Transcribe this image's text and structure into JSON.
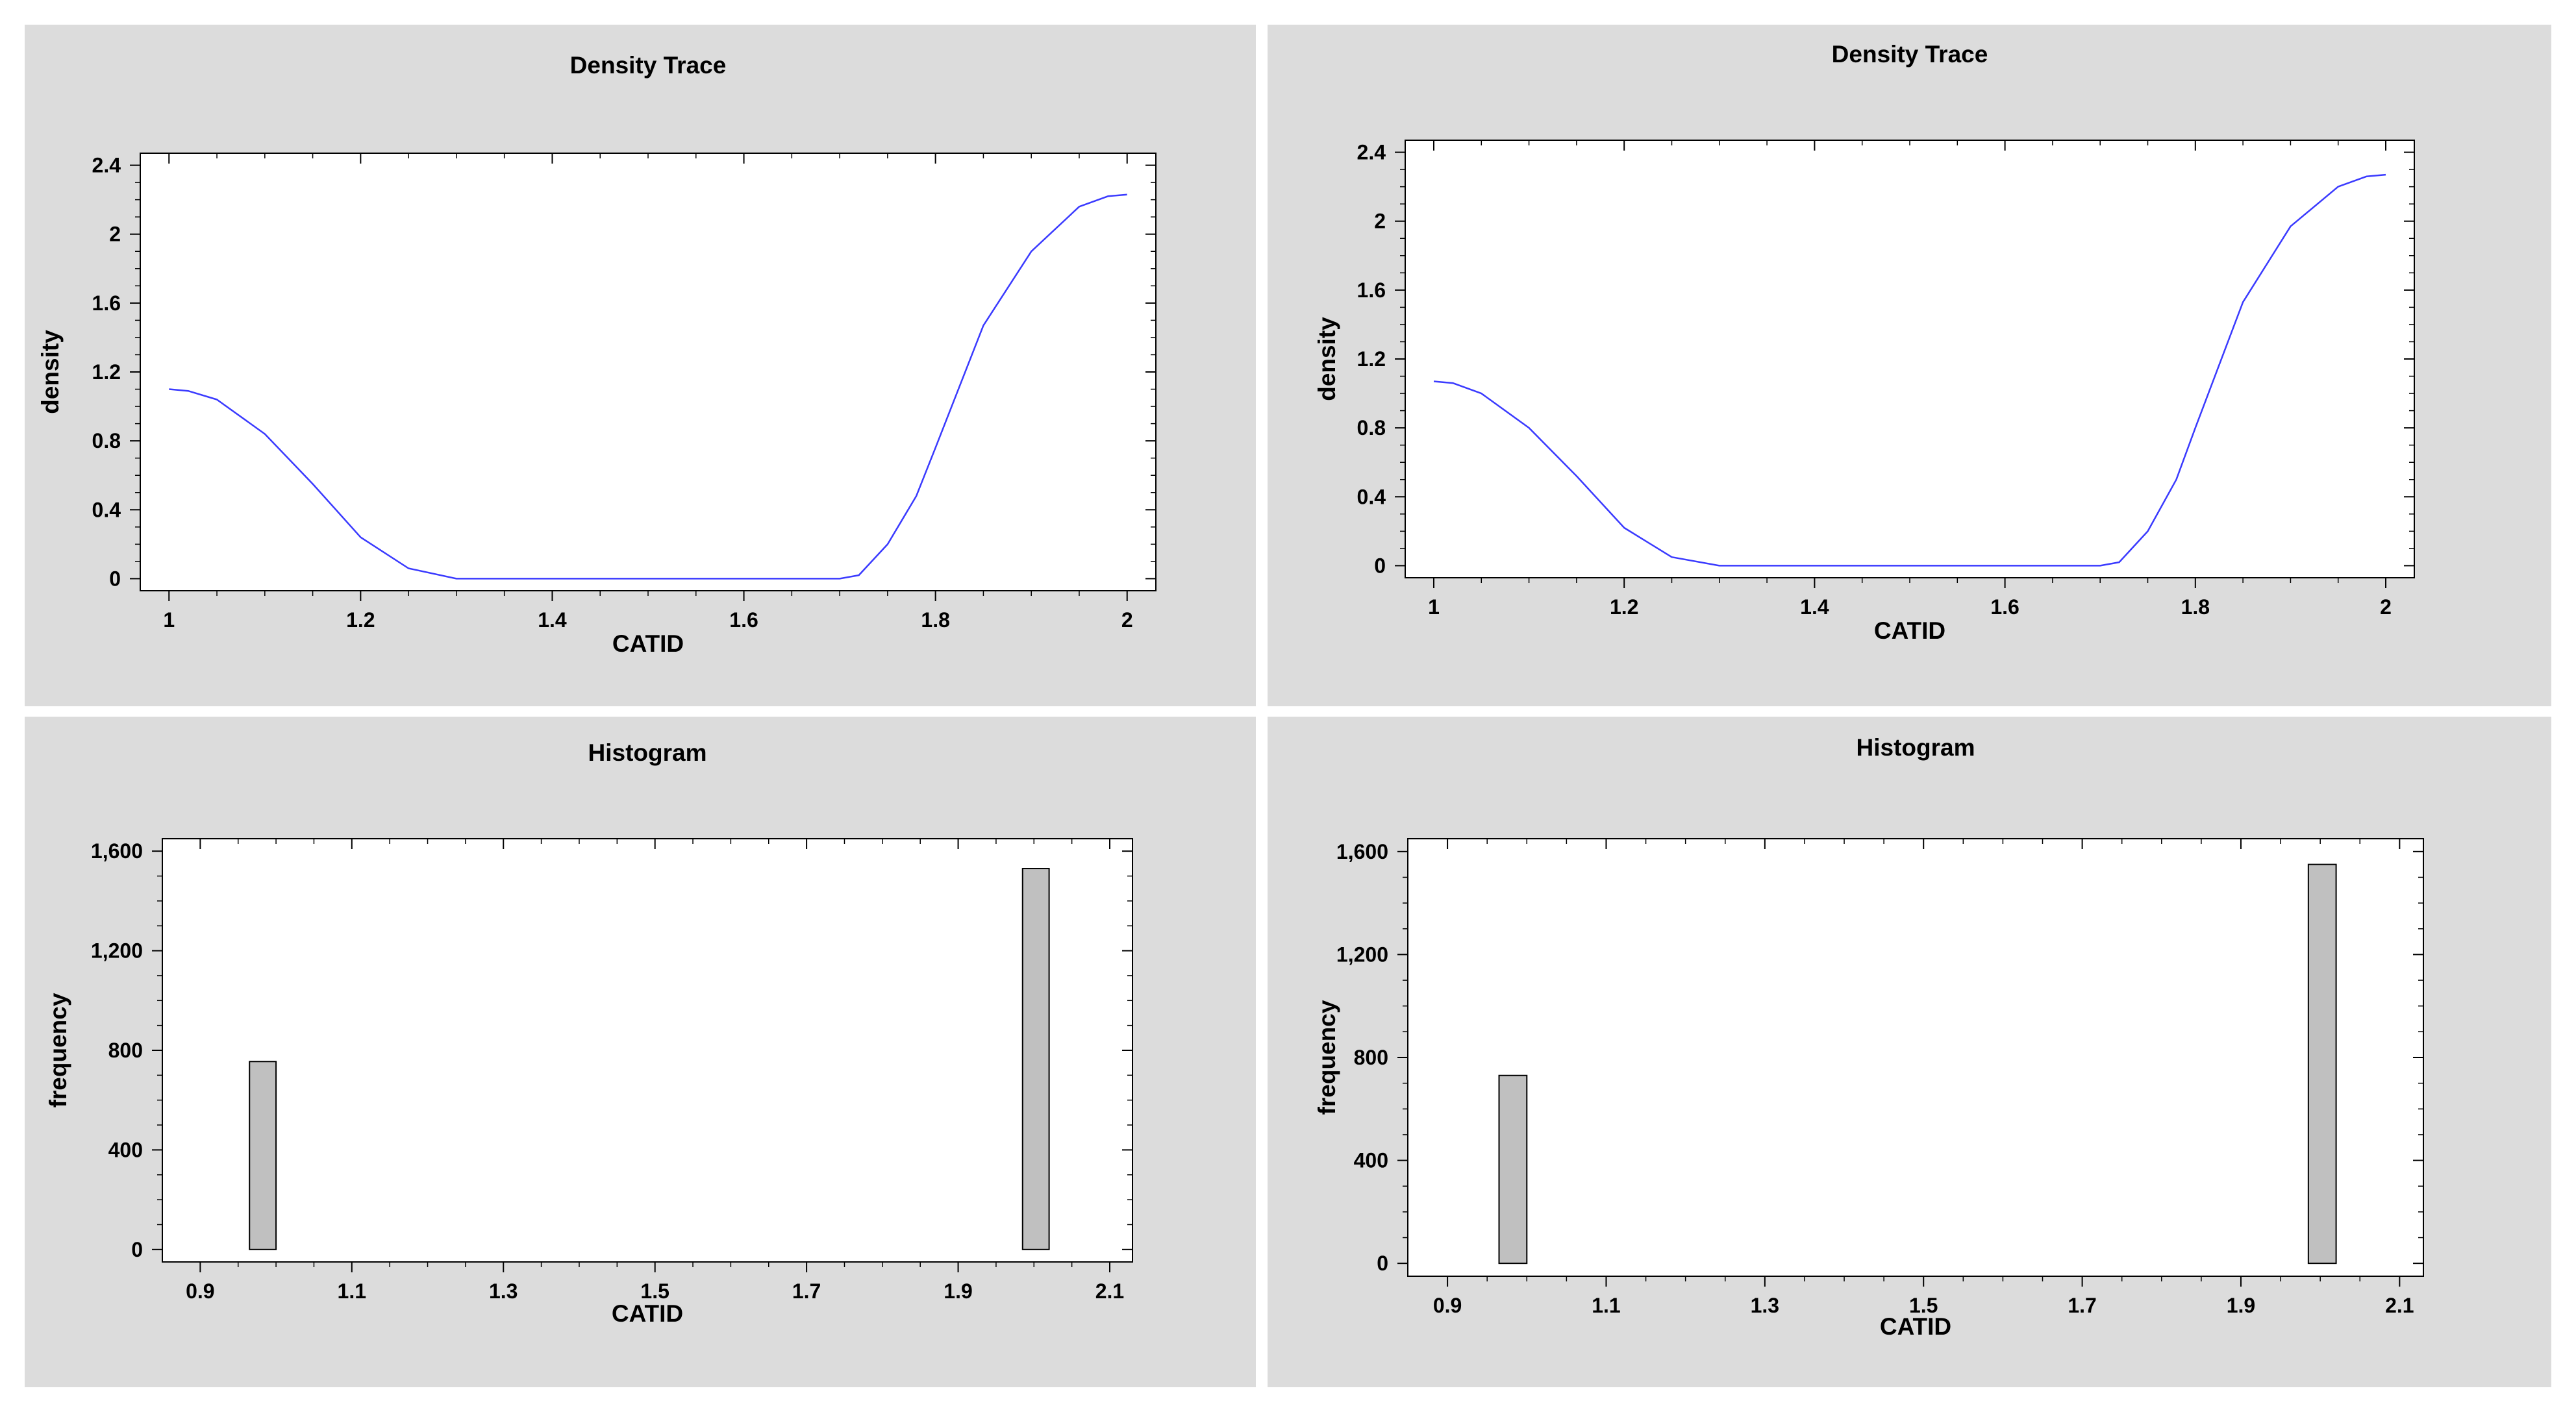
{
  "colors": {
    "panel_bg": "#dcdcdc",
    "plot_bg": "#ffffff",
    "density_line": "#3a3aff",
    "bar_fill": "#c0c0c0",
    "bar_stroke": "#000000"
  },
  "chart_data": [
    {
      "id": "density-1",
      "type": "line",
      "title": "Density Trace",
      "xlabel": "CATID",
      "ylabel": "density",
      "xlim": [
        0.97,
        2.03
      ],
      "ylim": [
        -0.07,
        2.47
      ],
      "xticks": [
        1,
        1.2,
        1.4,
        1.6,
        1.8,
        2
      ],
      "xtick_labels": [
        "1",
        "1.2",
        "1.4",
        "1.6",
        "1.8",
        "2"
      ],
      "yticks": [
        0,
        0.4,
        0.8,
        1.2,
        1.6,
        2,
        2.4
      ],
      "ytick_labels": [
        "0",
        "0.4",
        "0.8",
        "1.2",
        "1.6",
        "2",
        "2.4"
      ],
      "grid": false,
      "x": [
        1.0,
        1.02,
        1.05,
        1.1,
        1.15,
        1.2,
        1.25,
        1.3,
        1.35,
        1.4,
        1.5,
        1.6,
        1.7,
        1.72,
        1.75,
        1.78,
        1.8,
        1.85,
        1.9,
        1.95,
        1.98,
        2.0
      ],
      "y": [
        1.1,
        1.09,
        1.04,
        0.84,
        0.55,
        0.24,
        0.06,
        0.0,
        0.0,
        0.0,
        0.0,
        0.0,
        0.0,
        0.02,
        0.2,
        0.48,
        0.76,
        1.47,
        1.9,
        2.16,
        2.22,
        2.23
      ]
    },
    {
      "id": "density-2",
      "type": "line",
      "title": "Density Trace",
      "xlabel": "CATID",
      "ylabel": "density",
      "xlim": [
        0.97,
        2.03
      ],
      "ylim": [
        -0.07,
        2.47
      ],
      "xticks": [
        1,
        1.2,
        1.4,
        1.6,
        1.8,
        2
      ],
      "xtick_labels": [
        "1",
        "1.2",
        "1.4",
        "1.6",
        "1.8",
        "2"
      ],
      "yticks": [
        0,
        0.4,
        0.8,
        1.2,
        1.6,
        2,
        2.4
      ],
      "ytick_labels": [
        "0",
        "0.4",
        "0.8",
        "1.2",
        "1.6",
        "2",
        "2.4"
      ],
      "grid": false,
      "x": [
        1.0,
        1.02,
        1.05,
        1.1,
        1.15,
        1.2,
        1.25,
        1.3,
        1.35,
        1.4,
        1.5,
        1.6,
        1.7,
        1.72,
        1.75,
        1.78,
        1.8,
        1.85,
        1.9,
        1.95,
        1.98,
        2.0
      ],
      "y": [
        1.07,
        1.06,
        1.0,
        0.8,
        0.52,
        0.22,
        0.05,
        0.0,
        0.0,
        0.0,
        0.0,
        0.0,
        0.0,
        0.02,
        0.2,
        0.5,
        0.8,
        1.53,
        1.97,
        2.2,
        2.26,
        2.27
      ]
    },
    {
      "id": "histogram-1",
      "type": "bar",
      "title": "Histogram",
      "xlabel": "CATID",
      "ylabel": "frequency",
      "xlim": [
        0.85,
        2.13
      ],
      "ylim": [
        -50,
        1650
      ],
      "xticks": [
        0.9,
        1.1,
        1.3,
        1.5,
        1.7,
        1.9,
        2.1
      ],
      "xtick_labels": [
        "0.9",
        "1.1",
        "1.3",
        "1.5",
        "1.7",
        "1.9",
        "2.1"
      ],
      "yticks": [
        0,
        400,
        800,
        1200,
        1600
      ],
      "ytick_labels": [
        "0",
        "400",
        "800",
        "1,200",
        "1,600"
      ],
      "grid": false,
      "bars": [
        {
          "x0": 0.965,
          "x1": 1.0,
          "value": 755
        },
        {
          "x0": 1.985,
          "x1": 2.02,
          "value": 1530
        }
      ]
    },
    {
      "id": "histogram-2",
      "type": "bar",
      "title": "Histogram",
      "xlabel": "CATID",
      "ylabel": "frequency",
      "xlim": [
        0.85,
        2.13
      ],
      "ylim": [
        -50,
        1650
      ],
      "xticks": [
        0.9,
        1.1,
        1.3,
        1.5,
        1.7,
        1.9,
        2.1
      ],
      "xtick_labels": [
        "0.9",
        "1.1",
        "1.3",
        "1.5",
        "1.7",
        "1.9",
        "2.1"
      ],
      "yticks": [
        0,
        400,
        800,
        1200,
        1600
      ],
      "ytick_labels": [
        "0",
        "400",
        "800",
        "1,200",
        "1,600"
      ],
      "grid": false,
      "bars": [
        {
          "x0": 0.965,
          "x1": 1.0,
          "value": 730
        },
        {
          "x0": 1.985,
          "x1": 2.02,
          "value": 1550
        }
      ]
    }
  ]
}
